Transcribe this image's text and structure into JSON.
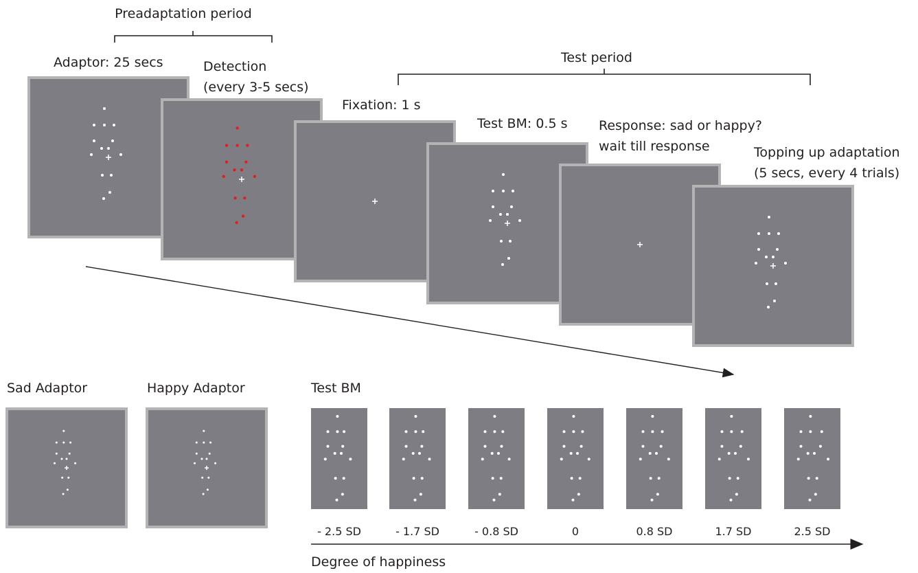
{
  "top": {
    "brackets": [
      {
        "label": "Preadaptation period"
      },
      {
        "label": "Test period"
      }
    ],
    "frames": [
      {
        "lines": [
          "Adaptor: 25 secs"
        ]
      },
      {
        "lines": [
          "Detection",
          "(every 3-5 secs)"
        ]
      },
      {
        "lines": [
          "Fixation: 1 s"
        ]
      },
      {
        "lines": [
          "Test BM: 0.5 s"
        ]
      },
      {
        "lines": [
          "Response: sad or happy?",
          "wait till response"
        ]
      },
      {
        "lines": [
          "Topping up adaptation",
          "(5 secs, every 4 trials)"
        ]
      }
    ]
  },
  "bottom": {
    "adaptors": [
      "Sad Adaptor",
      "Happy Adaptor"
    ],
    "test_title": "Test BM",
    "levels": [
      "- 2.5 SD",
      "- 1.7 SD",
      "- 0.8 SD",
      "0",
      "0.8 SD",
      "1.7 SD",
      "2.5 SD"
    ],
    "axis_label": "Degree of happiness"
  }
}
